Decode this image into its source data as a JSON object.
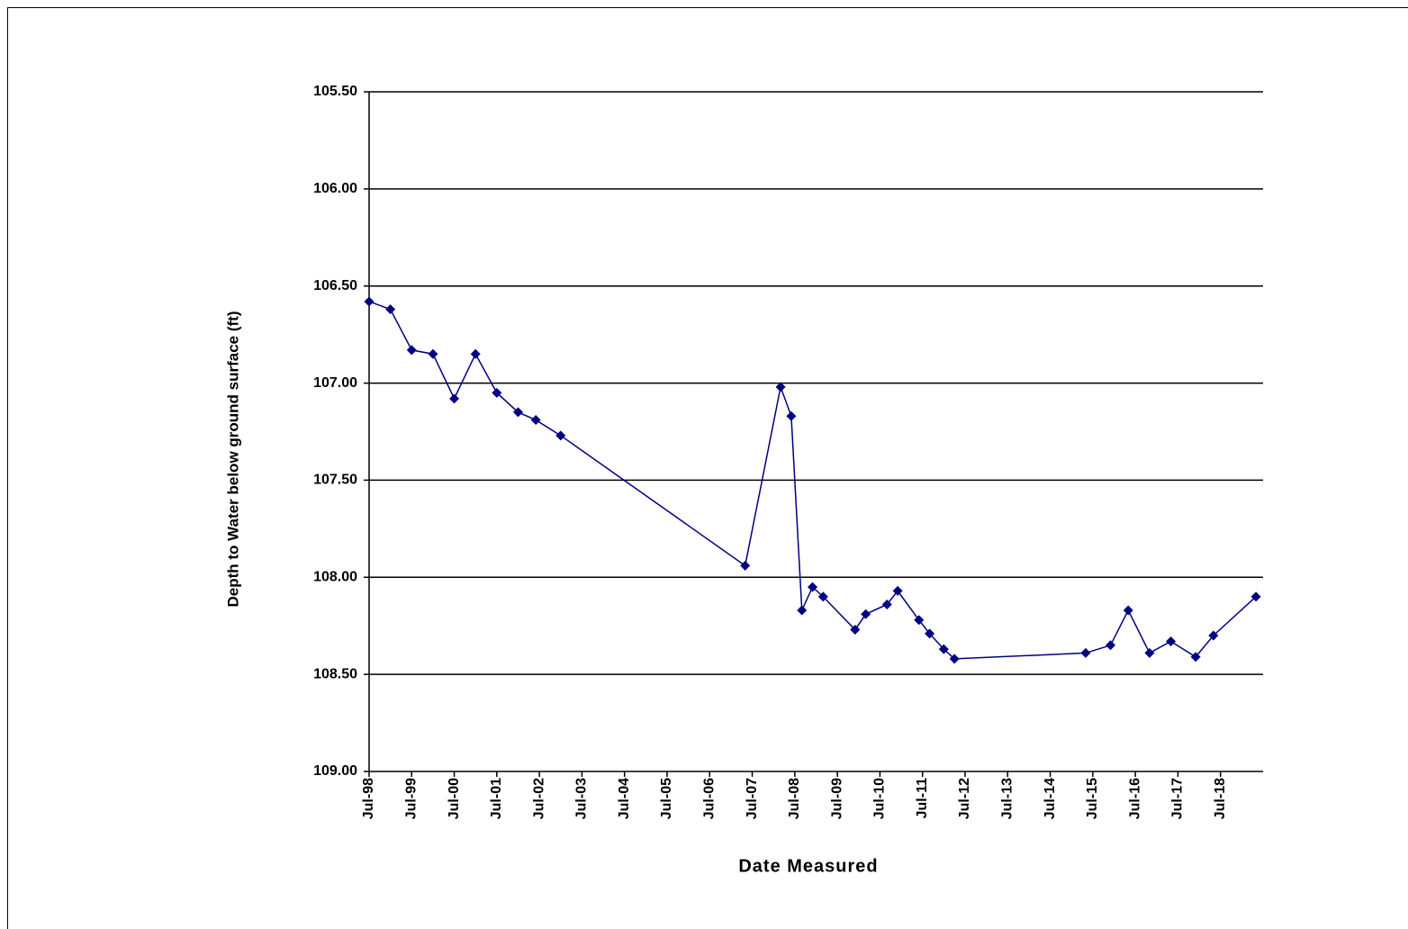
{
  "chart_data": {
    "type": "line",
    "ylabel": "Depth to Water below ground surface (ft)",
    "xlabel": "Date Measured",
    "ylim": [
      109.0,
      105.5
    ],
    "yticks": [
      {
        "value": 105.5,
        "label": "105.50"
      },
      {
        "value": 106.0,
        "label": "106.00"
      },
      {
        "value": 106.5,
        "label": "106.50"
      },
      {
        "value": 107.0,
        "label": "107.00"
      },
      {
        "value": 107.5,
        "label": "107.50"
      },
      {
        "value": 108.0,
        "label": "108.00"
      },
      {
        "value": 108.5,
        "label": "108.50"
      },
      {
        "value": 109.0,
        "label": "109.00"
      }
    ],
    "xlim": [
      "1998-07",
      "2019-07"
    ],
    "xticks": [
      {
        "value": "1998-07",
        "label": "Jul-98"
      },
      {
        "value": "1999-07",
        "label": "Jul-99"
      },
      {
        "value": "2000-07",
        "label": "Jul-00"
      },
      {
        "value": "2001-07",
        "label": "Jul-01"
      },
      {
        "value": "2002-07",
        "label": "Jul-02"
      },
      {
        "value": "2003-07",
        "label": "Jul-03"
      },
      {
        "value": "2004-07",
        "label": "Jul-04"
      },
      {
        "value": "2005-07",
        "label": "Jul-05"
      },
      {
        "value": "2006-07",
        "label": "Jul-06"
      },
      {
        "value": "2007-07",
        "label": "Jul-07"
      },
      {
        "value": "2008-07",
        "label": "Jul-08"
      },
      {
        "value": "2009-07",
        "label": "Jul-09"
      },
      {
        "value": "2010-07",
        "label": "Jul-10"
      },
      {
        "value": "2011-07",
        "label": "Jul-11"
      },
      {
        "value": "2012-07",
        "label": "Jul-12"
      },
      {
        "value": "2013-07",
        "label": "Jul-13"
      },
      {
        "value": "2014-07",
        "label": "Jul-14"
      },
      {
        "value": "2015-07",
        "label": "Jul-15"
      },
      {
        "value": "2016-07",
        "label": "Jul-16"
      },
      {
        "value": "2017-07",
        "label": "Jul-17"
      },
      {
        "value": "2018-07",
        "label": "Jul-18"
      }
    ],
    "grid": true,
    "series": [
      {
        "color": "#000080",
        "x": [
          "1998-07",
          "1999-01",
          "1999-07",
          "2000-01",
          "2000-07",
          "2001-01",
          "2001-07",
          "2002-01",
          "2002-06",
          "2003-01",
          "2007-05",
          "2008-03",
          "2008-06",
          "2008-09",
          "2008-12",
          "2009-03",
          "2009-12",
          "2010-03",
          "2010-09",
          "2010-12",
          "2011-06",
          "2011-09",
          "2012-01",
          "2012-04",
          "2015-05",
          "2015-12",
          "2016-05",
          "2016-11",
          "2017-05",
          "2017-12",
          "2018-05",
          "2019-05"
        ],
        "values": [
          106.58,
          106.62,
          106.83,
          106.85,
          107.08,
          106.85,
          107.05,
          107.15,
          107.19,
          107.27,
          107.94,
          107.02,
          107.17,
          108.17,
          108.05,
          108.1,
          108.27,
          108.19,
          108.14,
          108.07,
          108.22,
          108.29,
          108.37,
          108.42,
          108.39,
          108.35,
          108.17,
          108.39,
          108.33,
          108.41,
          108.3,
          108.1
        ]
      }
    ]
  }
}
